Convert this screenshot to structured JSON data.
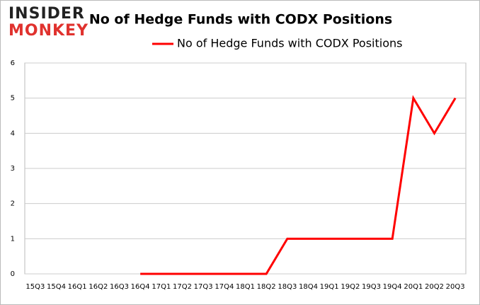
{
  "logo": {
    "line1": "INSIDER",
    "line2": "MONKEY"
  },
  "chart_data": {
    "type": "line",
    "title": "No of Hedge Funds with CODX Positions",
    "categories": [
      "15Q3",
      "15Q4",
      "16Q1",
      "16Q2",
      "16Q3",
      "16Q4",
      "17Q1",
      "17Q2",
      "17Q3",
      "17Q4",
      "18Q1",
      "18Q2",
      "18Q3",
      "18Q4",
      "19Q1",
      "19Q2",
      "19Q3",
      "19Q4",
      "20Q1",
      "20Q2",
      "20Q3"
    ],
    "series": [
      {
        "name": "No of Hedge Funds with CODX Positions",
        "color": "#ff0000",
        "values": [
          null,
          null,
          null,
          null,
          null,
          0,
          0,
          0,
          0,
          0,
          0,
          0,
          1,
          1,
          1,
          1,
          1,
          1,
          5,
          4,
          5
        ]
      }
    ],
    "ylim": [
      0,
      6
    ],
    "yticks": [
      0,
      1,
      2,
      3,
      4,
      5,
      6
    ],
    "grid": true,
    "legend": "top"
  }
}
